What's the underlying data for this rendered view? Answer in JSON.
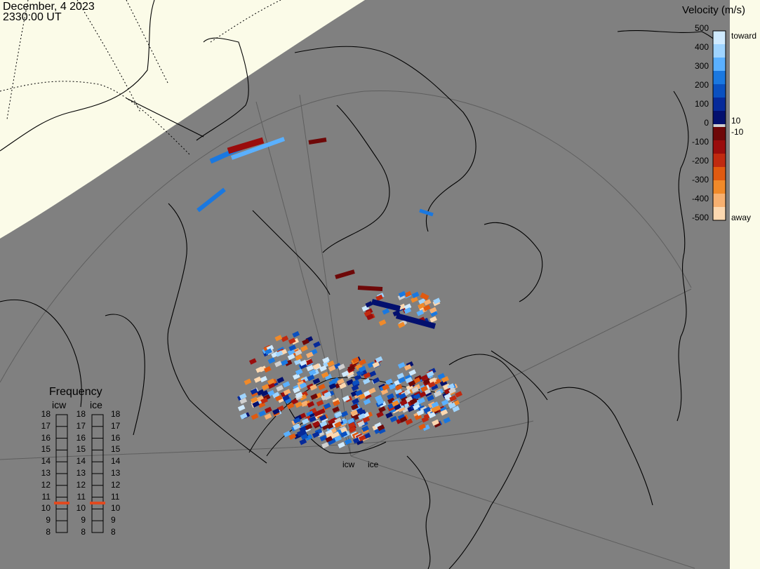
{
  "header": {
    "date": "December, 4 2023",
    "time": "2330:00 UT"
  },
  "colorbar": {
    "title": "Velocity (m/s)",
    "ticks": [
      "500",
      "400",
      "300",
      "200",
      "100",
      "0",
      "-100",
      "-200",
      "-300",
      "-400",
      "-500"
    ],
    "inner_labels": [
      "10",
      "-10"
    ],
    "end_labels": {
      "toward": "toward",
      "away": "away"
    },
    "colors_toward": [
      "#cfeaff",
      "#9fd4ff",
      "#5ab0ff",
      "#1a78e0",
      "#0a50c0",
      "#062a9a",
      "#03106e"
    ],
    "colors_away": [
      "#6e0808",
      "#9a0c0c",
      "#c02a10",
      "#e05a10",
      "#f08a2a",
      "#f7b070",
      "#fcd8b0"
    ],
    "ground_color": "#d0d0d0"
  },
  "frequency_panel": {
    "title": "Frequency",
    "radars": [
      {
        "name": "icw",
        "selected": "10.5"
      },
      {
        "name": "ice",
        "selected": "10.5"
      }
    ],
    "levels": [
      "18",
      "17",
      "16",
      "15",
      "14",
      "13",
      "12",
      "11",
      "10",
      "9",
      "8"
    ],
    "marker_color": "#e04a20"
  },
  "radar_sites": [
    "icw",
    "ice"
  ],
  "map_colors": {
    "night": "#808080",
    "day": "#fbfbe8",
    "coast": "#000000",
    "grid": "#5a5a5a"
  }
}
